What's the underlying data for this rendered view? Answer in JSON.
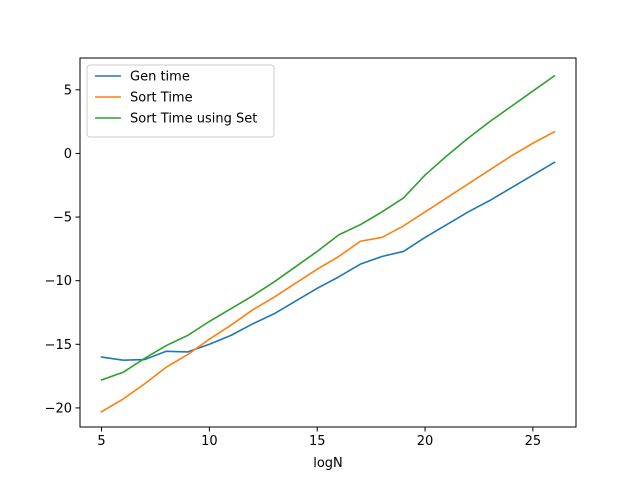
{
  "chart_data": {
    "type": "line",
    "title": "",
    "xlabel": "logN",
    "ylabel": "",
    "xlim": [
      4,
      27
    ],
    "ylim": [
      -21.5,
      7.5
    ],
    "xticks": [
      5,
      10,
      15,
      20,
      25
    ],
    "yticks": [
      5,
      0,
      -5,
      -10,
      -15,
      -20
    ],
    "xtick_labels": [
      "5",
      "10",
      "15",
      "20",
      "25"
    ],
    "ytick_labels": [
      "5",
      "0",
      "−5",
      "−10",
      "−15",
      "−20"
    ],
    "grid": false,
    "legend_placement": "upper-left",
    "x": [
      5,
      6,
      7,
      8,
      9,
      10,
      11,
      12,
      13,
      14,
      15,
      16,
      17,
      18,
      19,
      20,
      21,
      22,
      23,
      24,
      25,
      26
    ],
    "series": [
      {
        "name": "Gen time",
        "color": "#1f77b4",
        "values": [
          -16.0,
          -16.25,
          -16.2,
          -15.55,
          -15.6,
          -15.0,
          -14.3,
          -13.4,
          -12.6,
          -11.6,
          -10.6,
          -9.7,
          -8.7,
          -8.1,
          -7.7,
          -6.6,
          -5.6,
          -4.6,
          -3.7,
          -2.7,
          -1.7,
          -0.7
        ]
      },
      {
        "name": "Sort Time",
        "color": "#ff7f0e",
        "values": [
          -20.3,
          -19.3,
          -18.1,
          -16.8,
          -15.8,
          -14.6,
          -13.5,
          -12.3,
          -11.3,
          -10.2,
          -9.1,
          -8.1,
          -6.9,
          -6.6,
          -5.7,
          -4.6,
          -3.5,
          -2.4,
          -1.3,
          -0.2,
          0.8,
          1.7
        ]
      },
      {
        "name": "Sort Time using Set",
        "color": "#2ca02c",
        "values": [
          -17.8,
          -17.2,
          -16.1,
          -15.1,
          -14.3,
          -13.2,
          -12.2,
          -11.2,
          -10.1,
          -8.9,
          -7.7,
          -6.4,
          -5.6,
          -4.6,
          -3.5,
          -1.7,
          -0.2,
          1.2,
          2.5,
          3.7,
          4.9,
          6.1
        ]
      }
    ]
  }
}
